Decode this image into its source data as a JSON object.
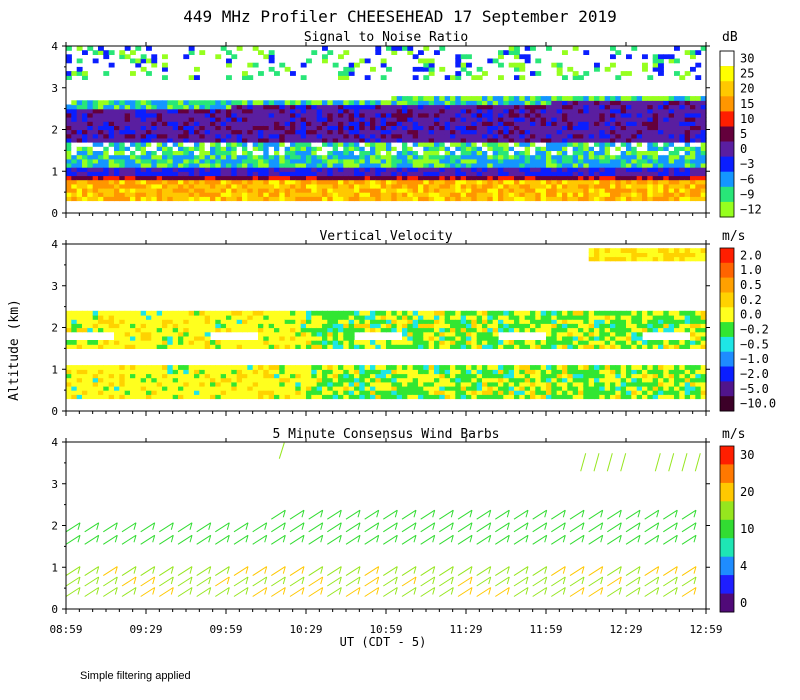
{
  "figure": {
    "title": "449 MHz Profiler CHEESEHEAD 17 September 2019",
    "ylabel": "Altitude (km)",
    "xlabel": "UT  (CDT - 5)",
    "footnote": "Simple filtering applied"
  },
  "chart_data": [
    {
      "type": "heatmap",
      "title": "Signal to Noise Ratio",
      "unit": "dB",
      "xlim": [
        0,
        240
      ],
      "ylim": [
        0,
        4
      ],
      "xticks": [
        "08:59",
        "09:29",
        "09:59",
        "10:29",
        "10:59",
        "11:29",
        "11:59",
        "12:29",
        "12:59"
      ],
      "yticks": [
        "0",
        "1",
        "2",
        "3",
        "4"
      ],
      "colorbar": [
        {
          "label": "30",
          "color": "#ffffff"
        },
        {
          "label": "25",
          "color": "#ffff00"
        },
        {
          "label": "20",
          "color": "#ffc800"
        },
        {
          "label": "15",
          "color": "#ff9600"
        },
        {
          "label": "10",
          "color": "#ff1e00"
        },
        {
          "label": "5",
          "color": "#64003c"
        },
        {
          "label": "0",
          "color": "#5a1ea0"
        },
        {
          "label": "−3",
          "color": "#0a1eff"
        },
        {
          "label": "−6",
          "color": "#1496ff"
        },
        {
          "label": "−9",
          "color": "#28e678"
        },
        {
          "label": "−12",
          "color": "#96ff1e"
        }
      ]
    },
    {
      "type": "heatmap",
      "title": "Vertical Velocity",
      "unit": "m/s",
      "xlim": [
        0,
        240
      ],
      "ylim": [
        0,
        4
      ],
      "xticks": [
        "08:59",
        "09:29",
        "09:59",
        "10:29",
        "10:59",
        "11:29",
        "11:59",
        "12:29",
        "12:59"
      ],
      "yticks": [
        "0",
        "1",
        "2",
        "3",
        "4"
      ],
      "colorbar": [
        {
          "label": "2.0",
          "color": "#ff1e00"
        },
        {
          "label": "1.0",
          "color": "#ff6400"
        },
        {
          "label": "0.5",
          "color": "#ffa000"
        },
        {
          "label": "0.2",
          "color": "#ffd200"
        },
        {
          "label": "0.0",
          "color": "#ffff1e"
        },
        {
          "label": "−0.2",
          "color": "#32e632"
        },
        {
          "label": "−0.5",
          "color": "#1ee6e6"
        },
        {
          "label": "−1.0",
          "color": "#1e8cff"
        },
        {
          "label": "−2.0",
          "color": "#0a1eff"
        },
        {
          "label": "−5.0",
          "color": "#50148c"
        },
        {
          "label": "−10.0",
          "color": "#3c0028"
        }
      ]
    },
    {
      "type": "barbs",
      "title": "5 Minute Consensus Wind Barbs",
      "unit": "m/s",
      "xlim": [
        0,
        240
      ],
      "ylim": [
        0,
        4
      ],
      "xticks": [
        "08:59",
        "09:29",
        "09:59",
        "10:29",
        "10:59",
        "11:29",
        "11:59",
        "12:29",
        "12:59"
      ],
      "yticks": [
        "0",
        "1",
        "2",
        "3",
        "4"
      ],
      "colorbar": [
        {
          "label": "30",
          "color": "#ff1e00"
        },
        {
          "label": "",
          "color": "#ff7800"
        },
        {
          "label": "20",
          "color": "#ffc800"
        },
        {
          "label": "",
          "color": "#96e61e"
        },
        {
          "label": "10",
          "color": "#32dc32"
        },
        {
          "label": "",
          "color": "#1ee6b4"
        },
        {
          "label": "4",
          "color": "#1e8cff"
        },
        {
          "label": "",
          "color": "#1e1eff"
        },
        {
          "label": "0",
          "color": "#500a78"
        }
      ]
    }
  ]
}
